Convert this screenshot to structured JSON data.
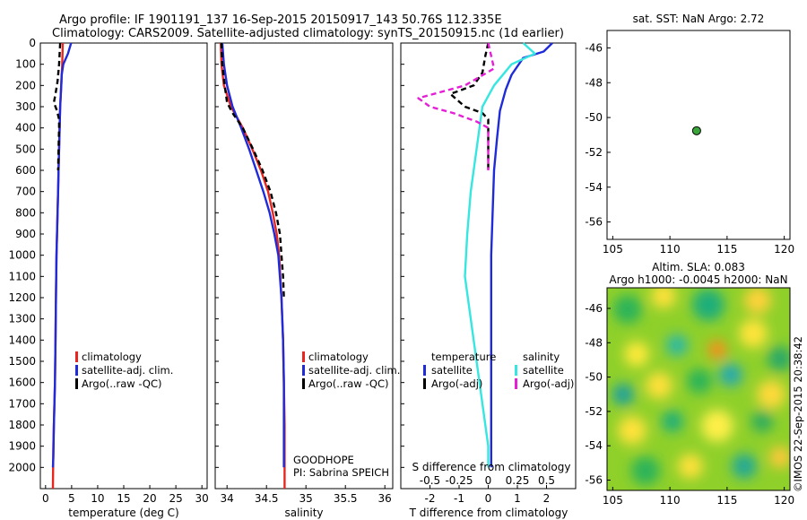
{
  "colors": {
    "climatology": "#e8261f",
    "satellite": "#1f2bd9",
    "argo": "#000000",
    "satellite_s": "#36e6e0",
    "argo_s": "#e61fd6",
    "marker": "#3aa63a"
  },
  "header": {
    "title_line1": "Argo profile: IF 1901191_137 16-Sep-2015 20150917_143 50.76S 112.335E",
    "title_line2": "Climatology: CARS2009. Satellite-adjusted climatology: synTS_20150915.nc (1d earlier)"
  },
  "depth_axis": {
    "ylim": [
      2100,
      0
    ],
    "ticks": [
      "0",
      "100",
      "200",
      "300",
      "400",
      "500",
      "600",
      "700",
      "800",
      "900",
      "1000",
      "1100",
      "1200",
      "1300",
      "1400",
      "1500",
      "1600",
      "1700",
      "1800",
      "1900",
      "2000"
    ]
  },
  "legend_profile": {
    "items": [
      "climatology",
      "satellite-adj. clim.",
      "Argo(..raw -QC)"
    ]
  },
  "legend_diff": {
    "headers": [
      "temperature",
      "salinity"
    ],
    "temperature_items": [
      "satellite",
      "Argo(-adj)"
    ],
    "salinity_items": [
      "satellite",
      "Argo(-adj)"
    ]
  },
  "float_info": {
    "project": "GOODHOPE",
    "pi": "PI: Sabrina SPEICH"
  },
  "map_top": {
    "title": "sat. SST: NaN Argo: 2.72",
    "xlim": [
      104.5,
      120.5
    ],
    "ylim": [
      -57,
      -45
    ],
    "xticks": [
      "105",
      "110",
      "115",
      "120"
    ],
    "yticks": [
      "-46",
      "-48",
      "-50",
      "-52",
      "-54",
      "-56"
    ],
    "float_position": {
      "lon": 112.335,
      "lat": -50.76
    }
  },
  "map_bottom": {
    "title_line1": "Altim. SLA: 0.083",
    "title_line2": "Argo h1000: -0.0045 h2000: NaN",
    "xticks": [
      "105",
      "110",
      "115",
      "120"
    ],
    "yticks": [
      "-46",
      "-48",
      "-50",
      "-52",
      "-54",
      "-56"
    ],
    "watermark": "©IMOS 22-Sep-2015 20:38:42"
  },
  "chart_data": [
    {
      "type": "line",
      "panel": "temperature",
      "xlabel": "temperature (deg C)",
      "ylabel": "",
      "xlim": [
        -1,
        31
      ],
      "ylim": [
        2100,
        0
      ],
      "xticks": [
        "0",
        "5",
        "10",
        "15",
        "20",
        "25",
        "30"
      ],
      "series": [
        {
          "name": "climatology",
          "style": "solid",
          "x": [
            3.3,
            3.2,
            3.0,
            2.8,
            2.7,
            2.6,
            2.5,
            2.4,
            2.3,
            2.2,
            2.1,
            2.0,
            1.9,
            1.8,
            1.7,
            1.6,
            1.5,
            1.4
          ],
          "y": [
            0,
            100,
            200,
            300,
            400,
            500,
            600,
            700,
            800,
            900,
            1000,
            1200,
            1400,
            1600,
            1700,
            1800,
            1900,
            2100
          ]
        },
        {
          "name": "satellite-adj. clim.",
          "style": "solid",
          "x": [
            4.9,
            4.3,
            3.4,
            3.1,
            3.0,
            2.8,
            2.7,
            2.6,
            2.5,
            2.4,
            2.3,
            2.2,
            2.1,
            2.0,
            1.9,
            1.8,
            1.6,
            1.5,
            1.4
          ],
          "y": [
            0,
            50,
            100,
            150,
            200,
            300,
            400,
            500,
            600,
            700,
            800,
            900,
            1000,
            1200,
            1400,
            1600,
            1800,
            1950,
            2000
          ]
        },
        {
          "name": "Argo(..raw -QC)",
          "style": "dashed",
          "x": [
            2.8,
            2.7,
            2.6,
            2.3,
            1.9,
            1.6,
            2.2,
            2.6,
            2.6,
            2.5,
            2.4
          ],
          "y": [
            0,
            50,
            100,
            180,
            240,
            280,
            320,
            360,
            400,
            500,
            600
          ]
        }
      ]
    },
    {
      "type": "line",
      "panel": "salinity",
      "xlabel": "salinity",
      "ylabel": "",
      "xlim": [
        33.85,
        36.1
      ],
      "ylim": [
        2100,
        0
      ],
      "xticks": [
        "34",
        "34.5",
        "35",
        "35.5",
        "36"
      ],
      "series": [
        {
          "name": "climatology",
          "style": "solid",
          "x": [
            33.92,
            33.93,
            33.96,
            34.05,
            34.2,
            34.32,
            34.43,
            34.52,
            34.58,
            34.63,
            34.66,
            34.69,
            34.71,
            34.72,
            34.73,
            34.73,
            34.73
          ],
          "y": [
            0,
            100,
            200,
            300,
            400,
            500,
            600,
            700,
            800,
            900,
            1000,
            1200,
            1400,
            1600,
            1800,
            2000,
            2100
          ]
        },
        {
          "name": "satellite-adj. clim.",
          "style": "solid",
          "x": [
            33.94,
            33.96,
            34.0,
            34.07,
            34.18,
            34.28,
            34.37,
            34.46,
            34.54,
            34.6,
            34.65,
            34.69,
            34.71,
            34.72,
            34.72
          ],
          "y": [
            0,
            100,
            200,
            300,
            400,
            500,
            600,
            700,
            800,
            900,
            1000,
            1200,
            1400,
            1600,
            2000
          ]
        },
        {
          "name": "Argo(..raw -QC)",
          "style": "dashed",
          "x": [
            33.93,
            33.94,
            33.97,
            34.0,
            34.07,
            34.2,
            34.33,
            34.45,
            34.55,
            34.62,
            34.67,
            34.69,
            34.71,
            34.72
          ],
          "y": [
            0,
            100,
            200,
            280,
            330,
            400,
            500,
            600,
            700,
            800,
            900,
            1000,
            1100,
            1200
          ]
        }
      ]
    },
    {
      "type": "line",
      "panel": "difference",
      "xlabel": "T difference from climatology",
      "xlabel_top": "S difference from climatology",
      "xlim": [
        -3,
        3
      ],
      "ylim": [
        2100,
        0
      ],
      "xticks": [
        "-2",
        "-1",
        "0",
        "1",
        "2"
      ],
      "xticks_top": [
        "-0.5",
        "-0.25",
        "0",
        "0.25",
        "0.5"
      ],
      "series": [
        {
          "name": "temperature satellite",
          "style": "solid",
          "x": [
            2.2,
            1.9,
            1.2,
            0.8,
            0.6,
            0.4,
            0.3,
            0.2,
            0.15,
            0.1,
            0.1,
            0.1,
            0.1,
            0.1,
            0.1,
            0.1
          ],
          "y": [
            0,
            40,
            70,
            150,
            220,
            320,
            450,
            600,
            800,
            1000,
            1200,
            1400,
            1600,
            1800,
            1950,
            2000
          ]
        },
        {
          "name": "temperature Argo(-adj)",
          "style": "dashed",
          "x": [
            0,
            -0.1,
            -0.2,
            -0.5,
            -1.3,
            -0.8,
            -0.2,
            0,
            0,
            0,
            0
          ],
          "y": [
            0,
            60,
            140,
            200,
            240,
            300,
            330,
            360,
            400,
            500,
            600
          ]
        },
        {
          "name": "salinity satellite",
          "style": "solid",
          "x": [
            0.3,
            0.4,
            0.2,
            0.05,
            -0.05,
            -0.1,
            -0.15,
            -0.18,
            -0.2,
            -0.15,
            -0.1,
            -0.05,
            0,
            0
          ],
          "y": [
            0,
            50,
            100,
            200,
            300,
            500,
            700,
            900,
            1100,
            1300,
            1500,
            1700,
            1900,
            2000
          ]
        },
        {
          "name": "salinity Argo(-adj)",
          "style": "dashed",
          "x": [
            0,
            0.05,
            -0.2,
            -0.6,
            -0.5,
            -0.3,
            -0.1,
            0,
            0,
            0
          ],
          "y": [
            0,
            120,
            200,
            260,
            300,
            330,
            370,
            400,
            500,
            600
          ]
        }
      ]
    }
  ]
}
